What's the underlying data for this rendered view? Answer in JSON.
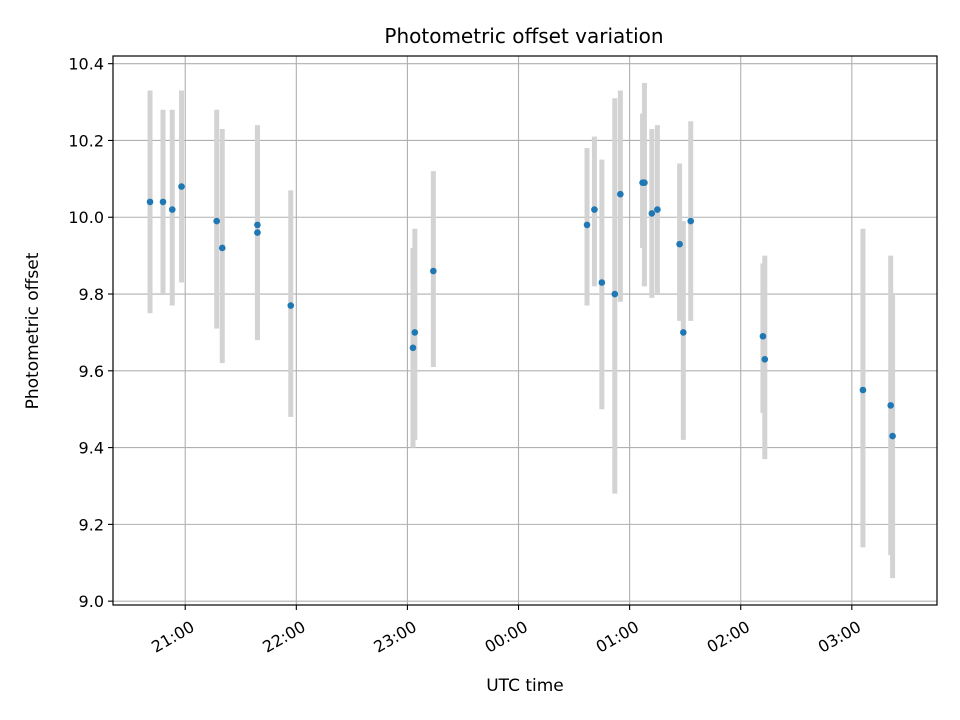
{
  "chart_data": {
    "type": "scatter",
    "title": "Photometric offset variation",
    "xlabel": "UTC time",
    "ylabel": "Photometric offset",
    "x_axis_type": "time",
    "x_ticks": [
      "21:00",
      "22:00",
      "23:00",
      "00:00",
      "01:00",
      "02:00",
      "03:00"
    ],
    "x_tick_hours": [
      21,
      22,
      23,
      24,
      25,
      26,
      27
    ],
    "xlim": [
      "20:21",
      "03:46"
    ],
    "ylim": [
      8.99,
      10.42
    ],
    "y_ticks": [
      9.0,
      9.2,
      9.4,
      9.6,
      9.8,
      10.0,
      10.2,
      10.4
    ],
    "grid": true,
    "marker_color": "#1f77b4",
    "errorbar_color": "#d3d3d3",
    "series": [
      {
        "points": [
          {
            "x": "20:41",
            "y": 10.04,
            "yerr_low": 9.75,
            "yerr_high": 10.33
          },
          {
            "x": "20:48",
            "y": 10.04,
            "yerr_low": 9.8,
            "yerr_high": 10.28
          },
          {
            "x": "20:53",
            "y": 10.02,
            "yerr_low": 9.77,
            "yerr_high": 10.28
          },
          {
            "x": "20:58",
            "y": 10.08,
            "yerr_low": 9.83,
            "yerr_high": 10.33
          },
          {
            "x": "21:17",
            "y": 9.99,
            "yerr_low": 9.71,
            "yerr_high": 10.28
          },
          {
            "x": "21:20",
            "y": 9.92,
            "yerr_low": 9.62,
            "yerr_high": 10.23
          },
          {
            "x": "21:39",
            "y": 9.98,
            "yerr_low": 9.72,
            "yerr_high": 10.24
          },
          {
            "x": "21:39",
            "y": 9.96,
            "yerr_low": 9.68,
            "yerr_high": 10.23
          },
          {
            "x": "21:57",
            "y": 9.77,
            "yerr_low": 9.48,
            "yerr_high": 10.07
          },
          {
            "x": "23:03",
            "y": 9.66,
            "yerr_low": 9.4,
            "yerr_high": 9.92
          },
          {
            "x": "23:04",
            "y": 9.7,
            "yerr_low": 9.42,
            "yerr_high": 9.97
          },
          {
            "x": "23:14",
            "y": 9.86,
            "yerr_low": 9.61,
            "yerr_high": 10.12
          },
          {
            "x": "00:37",
            "y": 9.98,
            "yerr_low": 9.77,
            "yerr_high": 10.18
          },
          {
            "x": "00:41",
            "y": 10.02,
            "yerr_low": 9.82,
            "yerr_high": 10.21
          },
          {
            "x": "00:45",
            "y": 9.83,
            "yerr_low": 9.5,
            "yerr_high": 10.15
          },
          {
            "x": "00:52",
            "y": 9.8,
            "yerr_low": 9.28,
            "yerr_high": 10.31
          },
          {
            "x": "00:55",
            "y": 10.06,
            "yerr_low": 9.78,
            "yerr_high": 10.33
          },
          {
            "x": "01:07",
            "y": 10.09,
            "yerr_low": 9.92,
            "yerr_high": 10.27
          },
          {
            "x": "01:08",
            "y": 10.09,
            "yerr_low": 9.82,
            "yerr_high": 10.35
          },
          {
            "x": "01:12",
            "y": 10.01,
            "yerr_low": 9.79,
            "yerr_high": 10.23
          },
          {
            "x": "01:15",
            "y": 10.02,
            "yerr_low": 9.8,
            "yerr_high": 10.24
          },
          {
            "x": "01:27",
            "y": 9.93,
            "yerr_low": 9.73,
            "yerr_high": 10.14
          },
          {
            "x": "01:29",
            "y": 9.7,
            "yerr_low": 9.42,
            "yerr_high": 9.99
          },
          {
            "x": "01:33",
            "y": 9.99,
            "yerr_low": 9.73,
            "yerr_high": 10.25
          },
          {
            "x": "02:12",
            "y": 9.69,
            "yerr_low": 9.49,
            "yerr_high": 9.88
          },
          {
            "x": "02:13",
            "y": 9.63,
            "yerr_low": 9.37,
            "yerr_high": 9.9
          },
          {
            "x": "03:06",
            "y": 9.55,
            "yerr_low": 9.14,
            "yerr_high": 9.97
          },
          {
            "x": "03:21",
            "y": 9.51,
            "yerr_low": 9.12,
            "yerr_high": 9.9
          },
          {
            "x": "03:22",
            "y": 9.43,
            "yerr_low": 9.06,
            "yerr_high": 9.8
          }
        ]
      }
    ]
  }
}
